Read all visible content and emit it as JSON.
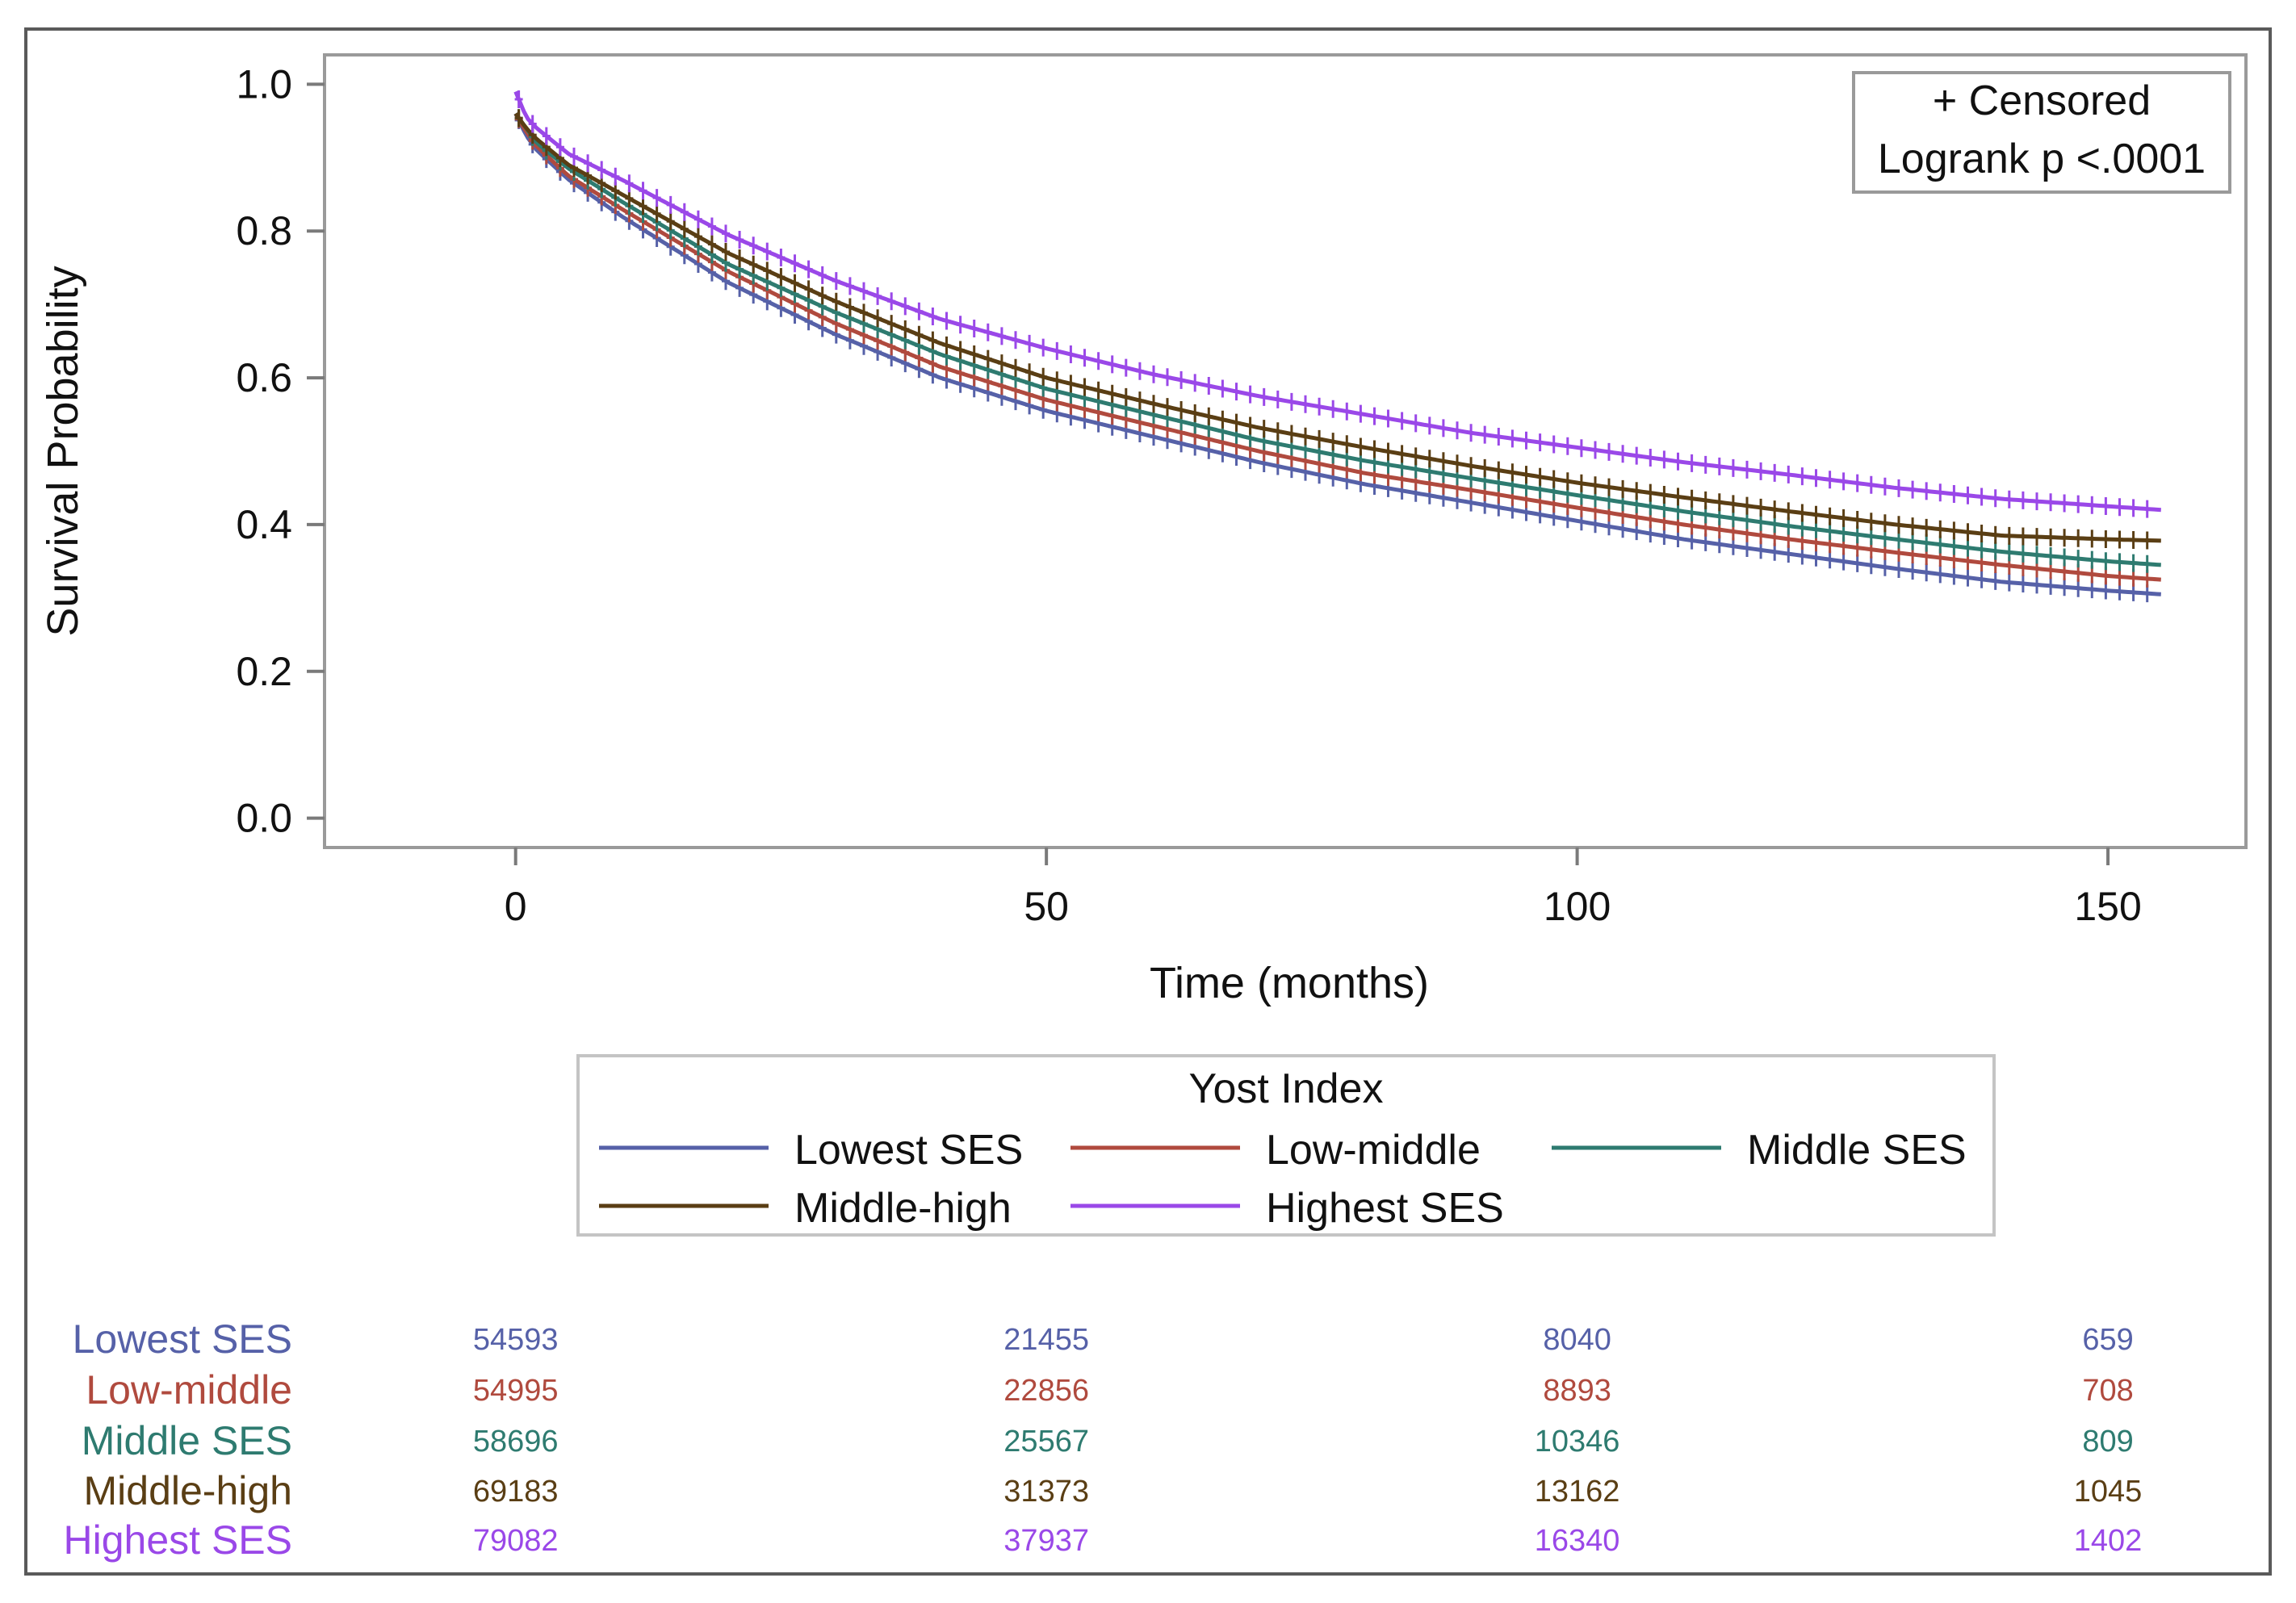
{
  "chart_data": {
    "type": "line",
    "subtype": "kaplan-meier survival curve",
    "xlabel": "Time (months)",
    "ylabel": "Survival Probability",
    "xlim": [
      -18,
      163
    ],
    "ylim": [
      -0.04,
      1.04
    ],
    "x_ticks": [
      0,
      50,
      100,
      150
    ],
    "x_tick_labels": [
      "0",
      "50",
      "100",
      "150"
    ],
    "y_ticks": [
      0.0,
      0.2,
      0.4,
      0.6,
      0.8,
      1.0
    ],
    "y_tick_labels": [
      "0.0",
      "0.2",
      "0.4",
      "0.6",
      "0.8",
      "1.0"
    ],
    "inset": {
      "censored_label": "+ Censored",
      "logrank_label": "Logrank p <.0001"
    },
    "legend": {
      "title": "Yost Index",
      "placement": "below-plot"
    },
    "series": [
      {
        "name": "Lowest SES",
        "color": "#5661a8",
        "x": [
          0,
          1,
          2,
          5,
          10,
          20,
          30,
          40,
          50,
          60,
          70,
          80,
          90,
          100,
          110,
          120,
          130,
          140,
          150,
          155
        ],
        "y": [
          0.96,
          0.93,
          0.91,
          0.87,
          0.82,
          0.73,
          0.66,
          0.6,
          0.555,
          0.52,
          0.485,
          0.455,
          0.43,
          0.405,
          0.38,
          0.36,
          0.34,
          0.322,
          0.31,
          0.305
        ]
      },
      {
        "name": "Low-middle",
        "color": "#b04a3e",
        "x": [
          0,
          1,
          2,
          5,
          10,
          20,
          30,
          40,
          50,
          60,
          70,
          80,
          90,
          100,
          110,
          120,
          130,
          140,
          150,
          155
        ],
        "y": [
          0.96,
          0.935,
          0.915,
          0.875,
          0.83,
          0.745,
          0.675,
          0.615,
          0.57,
          0.535,
          0.5,
          0.47,
          0.447,
          0.423,
          0.4,
          0.38,
          0.362,
          0.345,
          0.33,
          0.325
        ]
      },
      {
        "name": "Middle SES",
        "color": "#2e7b70",
        "x": [
          0,
          1,
          2,
          5,
          10,
          20,
          30,
          40,
          50,
          60,
          70,
          80,
          90,
          100,
          110,
          120,
          130,
          140,
          150,
          155
        ],
        "y": [
          0.96,
          0.94,
          0.92,
          0.885,
          0.84,
          0.755,
          0.69,
          0.632,
          0.585,
          0.55,
          0.515,
          0.487,
          0.463,
          0.44,
          0.418,
          0.398,
          0.38,
          0.363,
          0.35,
          0.345
        ]
      },
      {
        "name": "Middle-high",
        "color": "#5a3e14",
        "x": [
          0,
          1,
          2,
          5,
          10,
          20,
          30,
          40,
          50,
          60,
          70,
          80,
          90,
          100,
          110,
          120,
          130,
          140,
          150,
          155
        ],
        "y": [
          0.96,
          0.94,
          0.925,
          0.89,
          0.85,
          0.77,
          0.705,
          0.647,
          0.6,
          0.565,
          0.532,
          0.505,
          0.48,
          0.457,
          0.437,
          0.418,
          0.4,
          0.385,
          0.38,
          0.378
        ]
      },
      {
        "name": "Highest SES",
        "color": "#9a48e8",
        "x": [
          0,
          1,
          2,
          5,
          10,
          20,
          30,
          40,
          50,
          60,
          70,
          80,
          90,
          100,
          110,
          120,
          130,
          140,
          150,
          155
        ],
        "y": [
          0.99,
          0.955,
          0.94,
          0.905,
          0.87,
          0.795,
          0.733,
          0.68,
          0.64,
          0.605,
          0.575,
          0.55,
          0.525,
          0.505,
          0.485,
          0.468,
          0.45,
          0.435,
          0.425,
          0.42
        ]
      }
    ],
    "risk_table": {
      "time_points": [
        0,
        50,
        100,
        150
      ],
      "rows": [
        {
          "label": "Lowest SES",
          "color": "#5661a8",
          "values": [
            "54593",
            "21455",
            "8040",
            "659"
          ]
        },
        {
          "label": "Low-middle",
          "color": "#b04a3e",
          "values": [
            "54995",
            "22856",
            "8893",
            "708"
          ]
        },
        {
          "label": "Middle SES",
          "color": "#2e7b70",
          "values": [
            "58696",
            "25567",
            "10346",
            "809"
          ]
        },
        {
          "label": "Middle-high",
          "color": "#5a3e14",
          "values": [
            "69183",
            "31373",
            "13162",
            "1045"
          ]
        },
        {
          "label": "Highest SES",
          "color": "#9a48e8",
          "values": [
            "79082",
            "37937",
            "16340",
            "1402"
          ]
        }
      ]
    }
  }
}
